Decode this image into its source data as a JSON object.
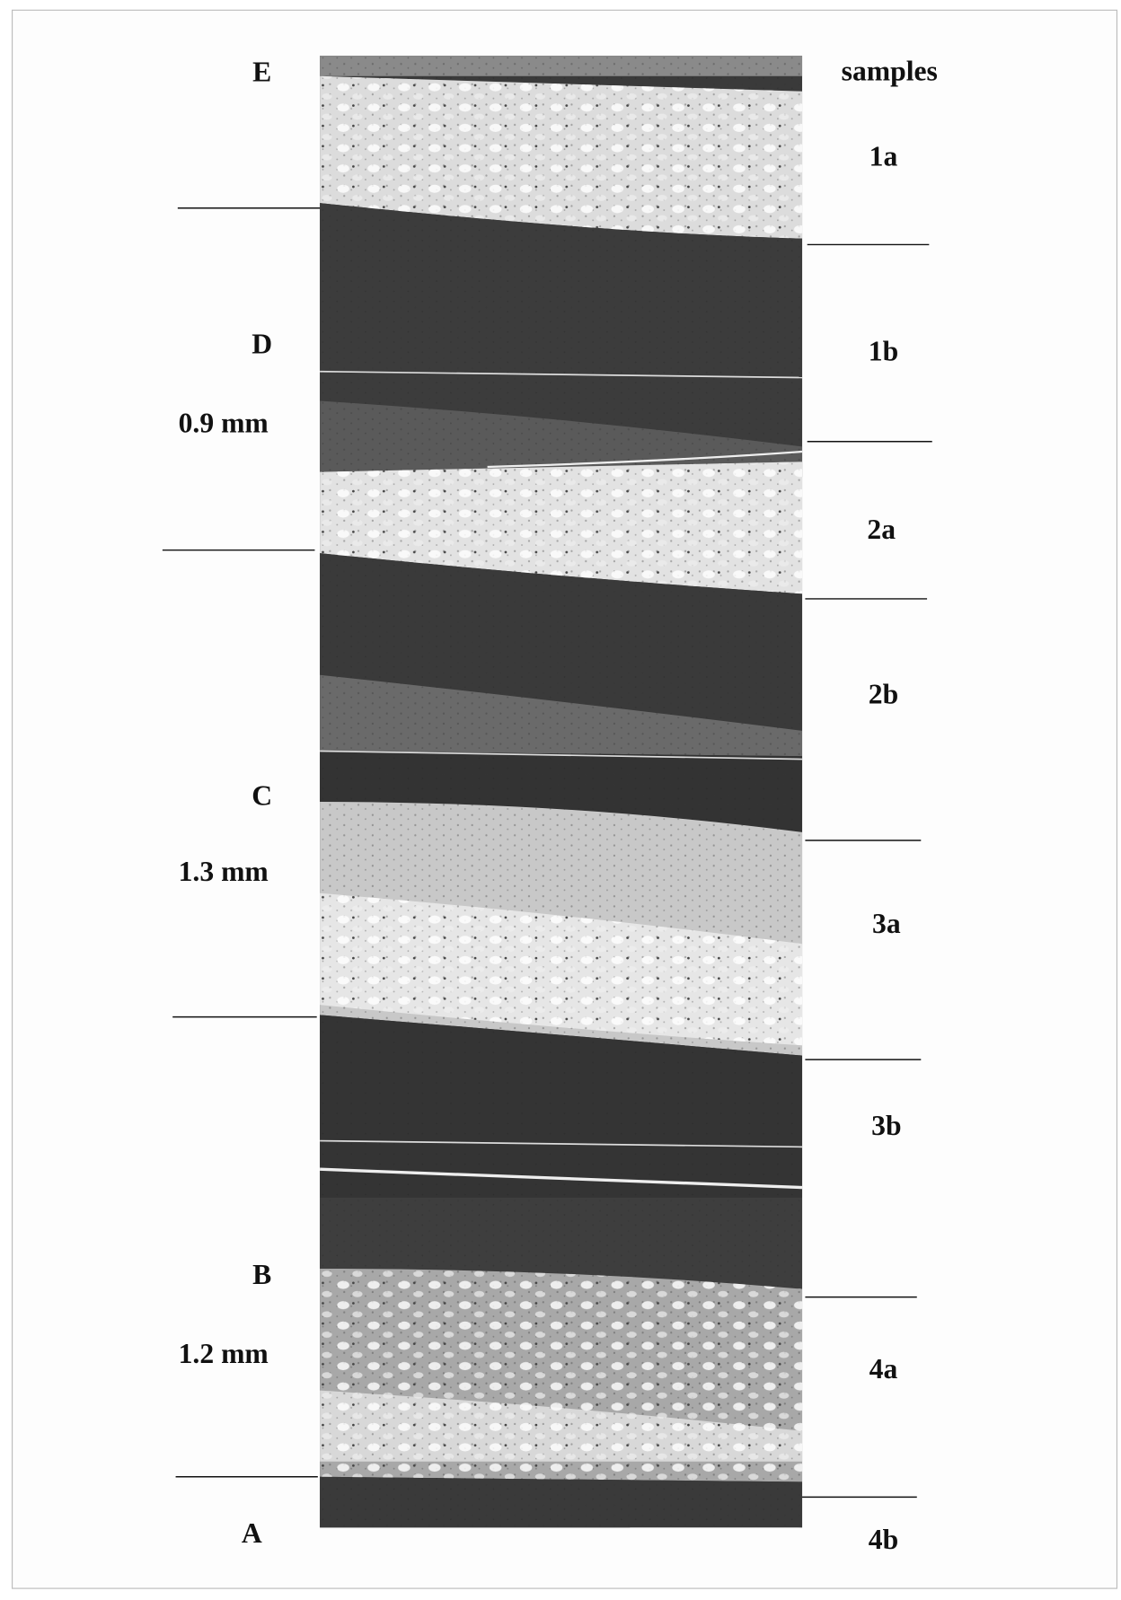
{
  "figure": {
    "left_labels": [
      "E",
      "D",
      "0.9 mm",
      "C",
      "1.3 mm",
      "B",
      "1.2 mm",
      "A"
    ],
    "samples_title": "samples",
    "samples": [
      "1a",
      "1b",
      "2a",
      "2b",
      "3a",
      "3b",
      "4a",
      "4b"
    ]
  }
}
